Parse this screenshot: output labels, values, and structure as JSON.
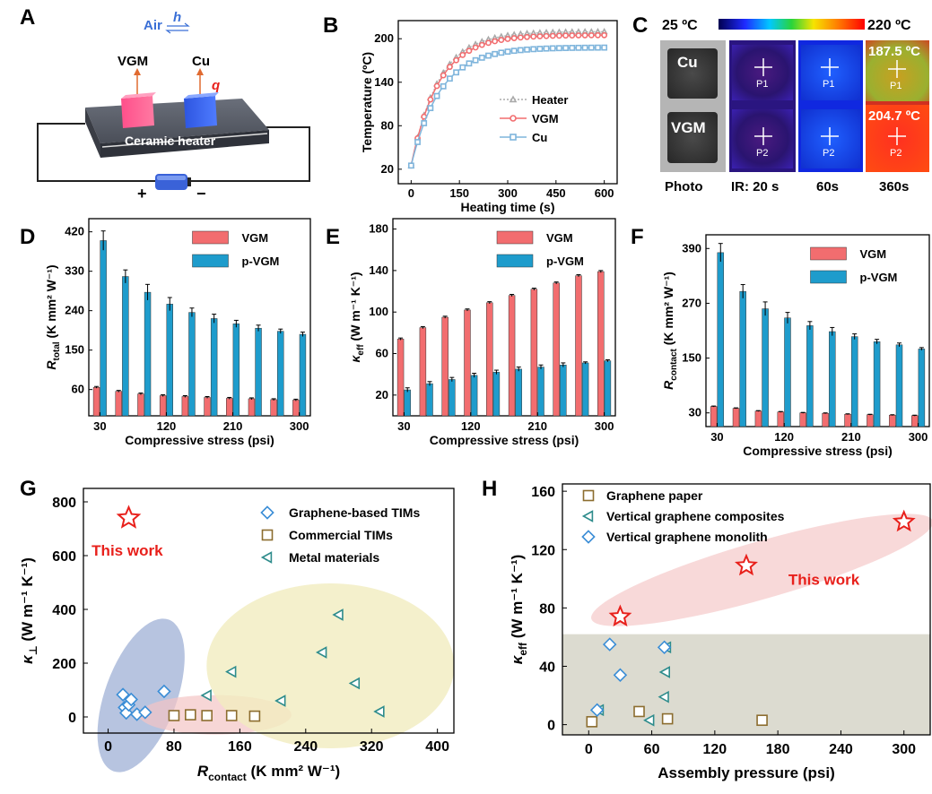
{
  "colors": {
    "vgm": "#f26d6f",
    "pvgm": "#1e9ccc",
    "cu": "#7fb5dc",
    "heater": "#aaaaaa",
    "star": "#e8201b",
    "teal": "#2e8c8c",
    "brown": "#8c6d2f",
    "diamond": "#3a8dd6"
  },
  "labels": {
    "A": "A",
    "B": "B",
    "C": "C",
    "D": "D",
    "E": "E",
    "F": "F",
    "G": "G",
    "H": "H"
  },
  "panelA": {
    "air": "Air",
    "h": "h",
    "vgm": "VGM",
    "cu": "Cu",
    "q": "q",
    "heater": "Ceramic heater",
    "plus": "+",
    "minus": "−"
  },
  "panelC": {
    "tmin": "25 ºC",
    "tmax": "220 ºC",
    "cu": "Cu",
    "vgm": "VGM",
    "p1": "P1",
    "p2": "P2",
    "t1": "187.5 ºC",
    "t2": "204.7 ºC",
    "cols": [
      "Photo",
      "IR: 20 s",
      "60s",
      "360s"
    ]
  },
  "chart_data": [
    {
      "id": "B",
      "type": "line",
      "xlabel": "Heating time (s)",
      "ylabel": "Temperature (ºC)",
      "xlim": [
        -40,
        640
      ],
      "ylim": [
        0,
        225
      ],
      "xticks": [
        0,
        150,
        300,
        450,
        600
      ],
      "yticks": [
        20,
        80,
        140,
        200
      ],
      "series": [
        {
          "name": "Heater",
          "T0": 25,
          "Tinf": 210,
          "tau": 85,
          "color": "#aaaaaa",
          "marker": "triangle"
        },
        {
          "name": "VGM",
          "T0": 25,
          "Tinf": 205,
          "tau": 85,
          "color": "#f26d6f",
          "marker": "circle"
        },
        {
          "name": "Cu",
          "T0": 25,
          "Tinf": 188,
          "tau": 90,
          "color": "#7fb5dc",
          "marker": "square"
        }
      ]
    },
    {
      "id": "D",
      "type": "bar",
      "categories": [
        30,
        60,
        90,
        120,
        150,
        180,
        210,
        240,
        270,
        300
      ],
      "xticks": [
        "30",
        "120",
        "210",
        "300"
      ],
      "ylabel": "R_total (K mm2 W-1)",
      "ylabel_main": "R",
      "ylabel_sub": "total",
      "ylabel_rest": " (K mm² W⁻¹)",
      "xlabel": "Compressive stress (psi)",
      "ylim": [
        0,
        450
      ],
      "yticks": [
        60,
        150,
        240,
        330,
        420
      ],
      "series": [
        {
          "name": "VGM",
          "values": [
            65,
            56,
            50,
            46,
            44,
            42,
            40,
            39,
            37,
            36
          ],
          "err": [
            2,
            2,
            2,
            2,
            2,
            2,
            2,
            2,
            2,
            2
          ]
        },
        {
          "name": "p-VGM",
          "values": [
            400,
            318,
            282,
            255,
            236,
            222,
            210,
            200,
            193,
            186
          ],
          "err": [
            22,
            15,
            18,
            15,
            10,
            10,
            8,
            7,
            5,
            5
          ]
        }
      ]
    },
    {
      "id": "E",
      "type": "bar",
      "categories": [
        30,
        60,
        90,
        120,
        150,
        180,
        210,
        240,
        270,
        300
      ],
      "xticks": [
        "30",
        "120",
        "210",
        "300"
      ],
      "ylabel": "k_eff (W m-1 K-1)",
      "ylabel_main": "κ",
      "ylabel_sub": "eff",
      "ylabel_rest": " (W m⁻¹ K⁻¹)",
      "xlabel": "Compressive stress (psi)",
      "ylim": [
        0,
        190
      ],
      "yticks": [
        20,
        60,
        100,
        140,
        180
      ],
      "series": [
        {
          "name": "VGM",
          "values": [
            74,
            85,
            95,
            102,
            109,
            116,
            122,
            128,
            135,
            139
          ],
          "err": [
            1,
            1,
            1,
            1,
            1,
            1,
            1,
            1,
            1,
            1
          ]
        },
        {
          "name": "p-VGM",
          "values": [
            25,
            31,
            35,
            39,
            42,
            45,
            47,
            49,
            51,
            53
          ],
          "err": [
            2,
            2,
            2,
            2,
            2,
            2,
            2,
            2,
            1,
            1
          ]
        }
      ]
    },
    {
      "id": "F",
      "type": "bar",
      "categories": [
        30,
        60,
        90,
        120,
        150,
        180,
        210,
        240,
        270,
        300
      ],
      "xticks": [
        "30",
        "120",
        "210",
        "300"
      ],
      "ylabel": "R_contact (K mm2 W-1)",
      "ylabel_main": "R",
      "ylabel_sub": "contact",
      "ylabel_rest": " (K mm² W⁻¹)",
      "xlabel": "Compressive stress (psi)",
      "ylim": [
        0,
        420
      ],
      "yticks": [
        30,
        150,
        270,
        390
      ],
      "series": [
        {
          "name": "VGM",
          "values": [
            44,
            40,
            34,
            32,
            30,
            29,
            27,
            26,
            25,
            24
          ],
          "err": [
            1,
            1,
            1,
            1,
            1,
            1,
            1,
            1,
            1,
            1
          ]
        },
        {
          "name": "p-VGM",
          "values": [
            381,
            296,
            258,
            238,
            221,
            208,
            197,
            186,
            179,
            170
          ],
          "err": [
            20,
            15,
            15,
            12,
            9,
            9,
            6,
            5,
            4,
            3
          ]
        }
      ]
    },
    {
      "id": "G",
      "type": "scatter",
      "xlabel": "R_contact (K mm2 W-1)",
      "xlabel_main": "R",
      "xlabel_sub": "contact",
      "xlabel_rest": " (K mm² W⁻¹)",
      "ylabel": "k_perp (W m-1 K-1)",
      "ylabel_main": "κ",
      "ylabel_sub": "⊥",
      "ylabel_rest": " (W m⁻¹ K⁻¹)",
      "xlim": [
        -30,
        420
      ],
      "ylim": [
        -60,
        850
      ],
      "xticks": [
        0,
        80,
        160,
        240,
        320,
        400
      ],
      "yticks": [
        0,
        200,
        400,
        600,
        800
      ],
      "annotation": "This work",
      "series": [
        {
          "name": "Graphene-based TIMs",
          "marker": "diamond",
          "x": [
            18,
            20,
            22,
            25,
            28,
            35,
            45,
            68
          ],
          "y": [
            83,
            35,
            15,
            45,
            65,
            10,
            17,
            95
          ]
        },
        {
          "name": "Commercial TIMs",
          "marker": "square",
          "x": [
            80,
            100,
            120,
            150,
            178
          ],
          "y": [
            5,
            8,
            5,
            5,
            3
          ]
        },
        {
          "name": "Metal materials",
          "marker": "triangle-left",
          "x": [
            120,
            150,
            210,
            260,
            280,
            300,
            330
          ],
          "y": [
            80,
            168,
            60,
            240,
            380,
            125,
            20
          ]
        },
        {
          "name": "This work",
          "marker": "star",
          "x": [
            25
          ],
          "y": [
            740
          ]
        }
      ]
    },
    {
      "id": "H",
      "type": "scatter",
      "xlabel": "Assembly pressure (psi)",
      "ylabel": "k_eff (W m-1 K-1)",
      "ylabel_main": "κ",
      "ylabel_sub": "eff",
      "ylabel_rest": " (W m⁻¹ K⁻¹)",
      "xlim": [
        -25,
        325
      ],
      "ylim": [
        -7,
        165
      ],
      "xticks": [
        0,
        60,
        120,
        180,
        240,
        300
      ],
      "yticks": [
        0,
        40,
        80,
        120,
        160
      ],
      "annotation": "This work",
      "shaded_below": 62,
      "series": [
        {
          "name": "Graphene paper",
          "marker": "square",
          "x": [
            3,
            48,
            75,
            165
          ],
          "y": [
            2,
            9,
            4,
            3
          ]
        },
        {
          "name": "Vertical graphene composites",
          "marker": "triangle-left",
          "x": [
            10,
            58,
            72,
            73,
            74
          ],
          "y": [
            10,
            3,
            19,
            36,
            53
          ]
        },
        {
          "name": "Vertical graphene monolith",
          "marker": "diamond",
          "x": [
            8,
            20,
            30,
            72
          ],
          "y": [
            10,
            55,
            34,
            53
          ]
        },
        {
          "name": "This work",
          "marker": "star",
          "x": [
            30,
            150,
            300
          ],
          "y": [
            74,
            109,
            139
          ]
        }
      ]
    }
  ]
}
